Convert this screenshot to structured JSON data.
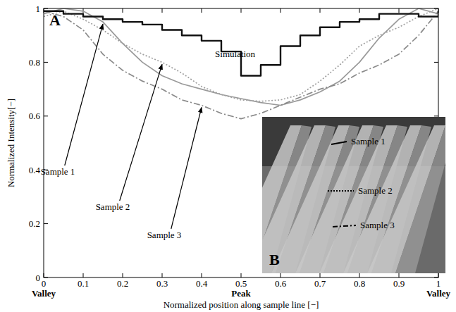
{
  "chart_data": {
    "type": "line",
    "panel": "A",
    "inset_panel": "B",
    "x_label": "Normalized position along sample line [−]",
    "y_label": "Normalized Intensity[−]",
    "xlim": [
      0,
      1
    ],
    "ylim": [
      0,
      1
    ],
    "xticks": [
      0,
      0.1,
      0.2,
      0.3,
      0.4,
      0.5,
      0.6,
      0.7,
      0.8,
      0.9,
      1
    ],
    "yticks": [
      0,
      0.2,
      0.4,
      0.6,
      0.8,
      1
    ],
    "x_sublabels": [
      {
        "value": 0,
        "label": "Valley"
      },
      {
        "value": 0.5,
        "label": "Peak"
      },
      {
        "value": 1,
        "label": "Valley"
      }
    ],
    "grid": false,
    "x": [
      0,
      0.05,
      0.1,
      0.15,
      0.2,
      0.25,
      0.3,
      0.35,
      0.4,
      0.45,
      0.5,
      0.55,
      0.6,
      0.65,
      0.7,
      0.75,
      0.8,
      0.85,
      0.9,
      0.95,
      1
    ],
    "series": [
      {
        "name": "Simulation",
        "color": "#111111",
        "line_style": "step",
        "values": [
          0.99,
          0.98,
          0.97,
          0.96,
          0.95,
          0.94,
          0.92,
          0.9,
          0.88,
          0.84,
          0.75,
          0.79,
          0.86,
          0.9,
          0.93,
          0.95,
          0.96,
          0.98,
          0.98,
          0.97,
          0.99
        ]
      },
      {
        "name": "Sample 1",
        "color": "#9a9a9a",
        "line_style": "solid",
        "values": [
          0.98,
          1.0,
          0.99,
          0.95,
          0.87,
          0.8,
          0.75,
          0.72,
          0.7,
          0.68,
          0.665,
          0.65,
          0.64,
          0.66,
          0.69,
          0.73,
          0.8,
          0.89,
          0.96,
          1.0,
          0.98
        ]
      },
      {
        "name": "Sample 2",
        "color": "#a0a0a0",
        "line_style": "dotted",
        "values": [
          0.97,
          0.99,
          0.96,
          0.92,
          0.87,
          0.83,
          0.8,
          0.76,
          0.71,
          0.68,
          0.66,
          0.655,
          0.66,
          0.68,
          0.73,
          0.79,
          0.86,
          0.9,
          0.93,
          0.97,
          1.0
        ]
      },
      {
        "name": "Sample 3",
        "color": "#8a8a8a",
        "line_style": "dashdot",
        "values": [
          0.99,
          0.97,
          0.92,
          0.83,
          0.77,
          0.73,
          0.7,
          0.66,
          0.64,
          0.61,
          0.59,
          0.61,
          0.64,
          0.67,
          0.7,
          0.72,
          0.76,
          0.79,
          0.83,
          0.9,
          0.99
        ]
      }
    ]
  }
}
